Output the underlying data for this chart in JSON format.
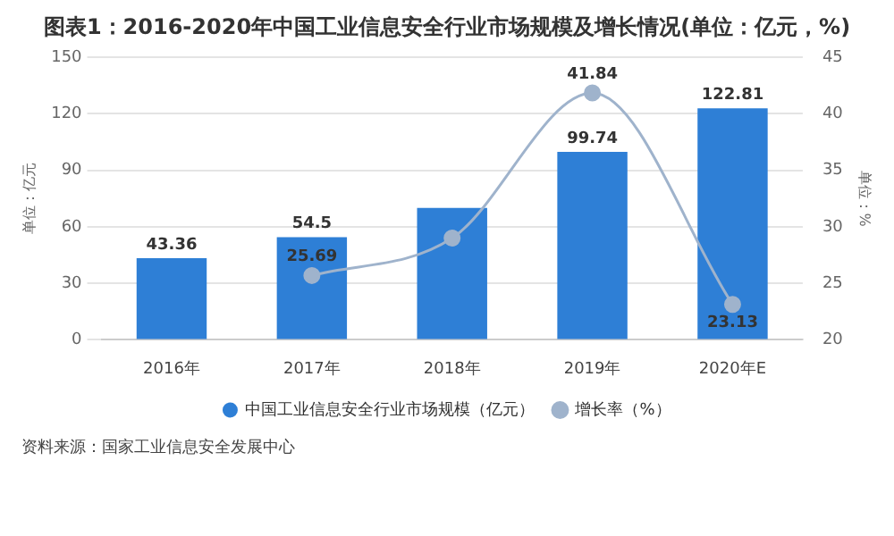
{
  "chart_data": {
    "type": "bar",
    "title": "图表1：2016-2020年中国工业信息安全行业市场规模及增长情况(单位：亿元，%)",
    "categories": [
      "2016年",
      "2017年",
      "2018年",
      "2019年",
      "2020年E"
    ],
    "series": [
      {
        "name": "中国工业信息安全行业市场规模（亿元）",
        "color": "#2e7fd6",
        "values": [
          43.36,
          54.5,
          70,
          99.74,
          122.81
        ],
        "value_labels": [
          "43.36",
          "54.5",
          null,
          "99.74",
          "122.81"
        ]
      },
      {
        "name": "增长率（%）",
        "type": "line",
        "axis": "y2",
        "color": "#9fb3cc",
        "values": [
          null,
          25.69,
          29.0,
          41.84,
          23.13
        ],
        "value_labels": [
          null,
          "25.69",
          null,
          "41.84",
          "23.13"
        ]
      }
    ],
    "ylabel": "单位：亿元",
    "y2label": "单位：%",
    "ylim": [
      0,
      150
    ],
    "yticks": [
      0,
      30,
      60,
      90,
      120,
      150
    ],
    "y2lim": [
      20,
      45
    ],
    "y2ticks": [
      20,
      25,
      30,
      35,
      40,
      45
    ],
    "grid": "y",
    "legend": "bottom",
    "marker": "circle",
    "annotations": [
      "资料来源：国家工业信息安全发展中心"
    ]
  }
}
